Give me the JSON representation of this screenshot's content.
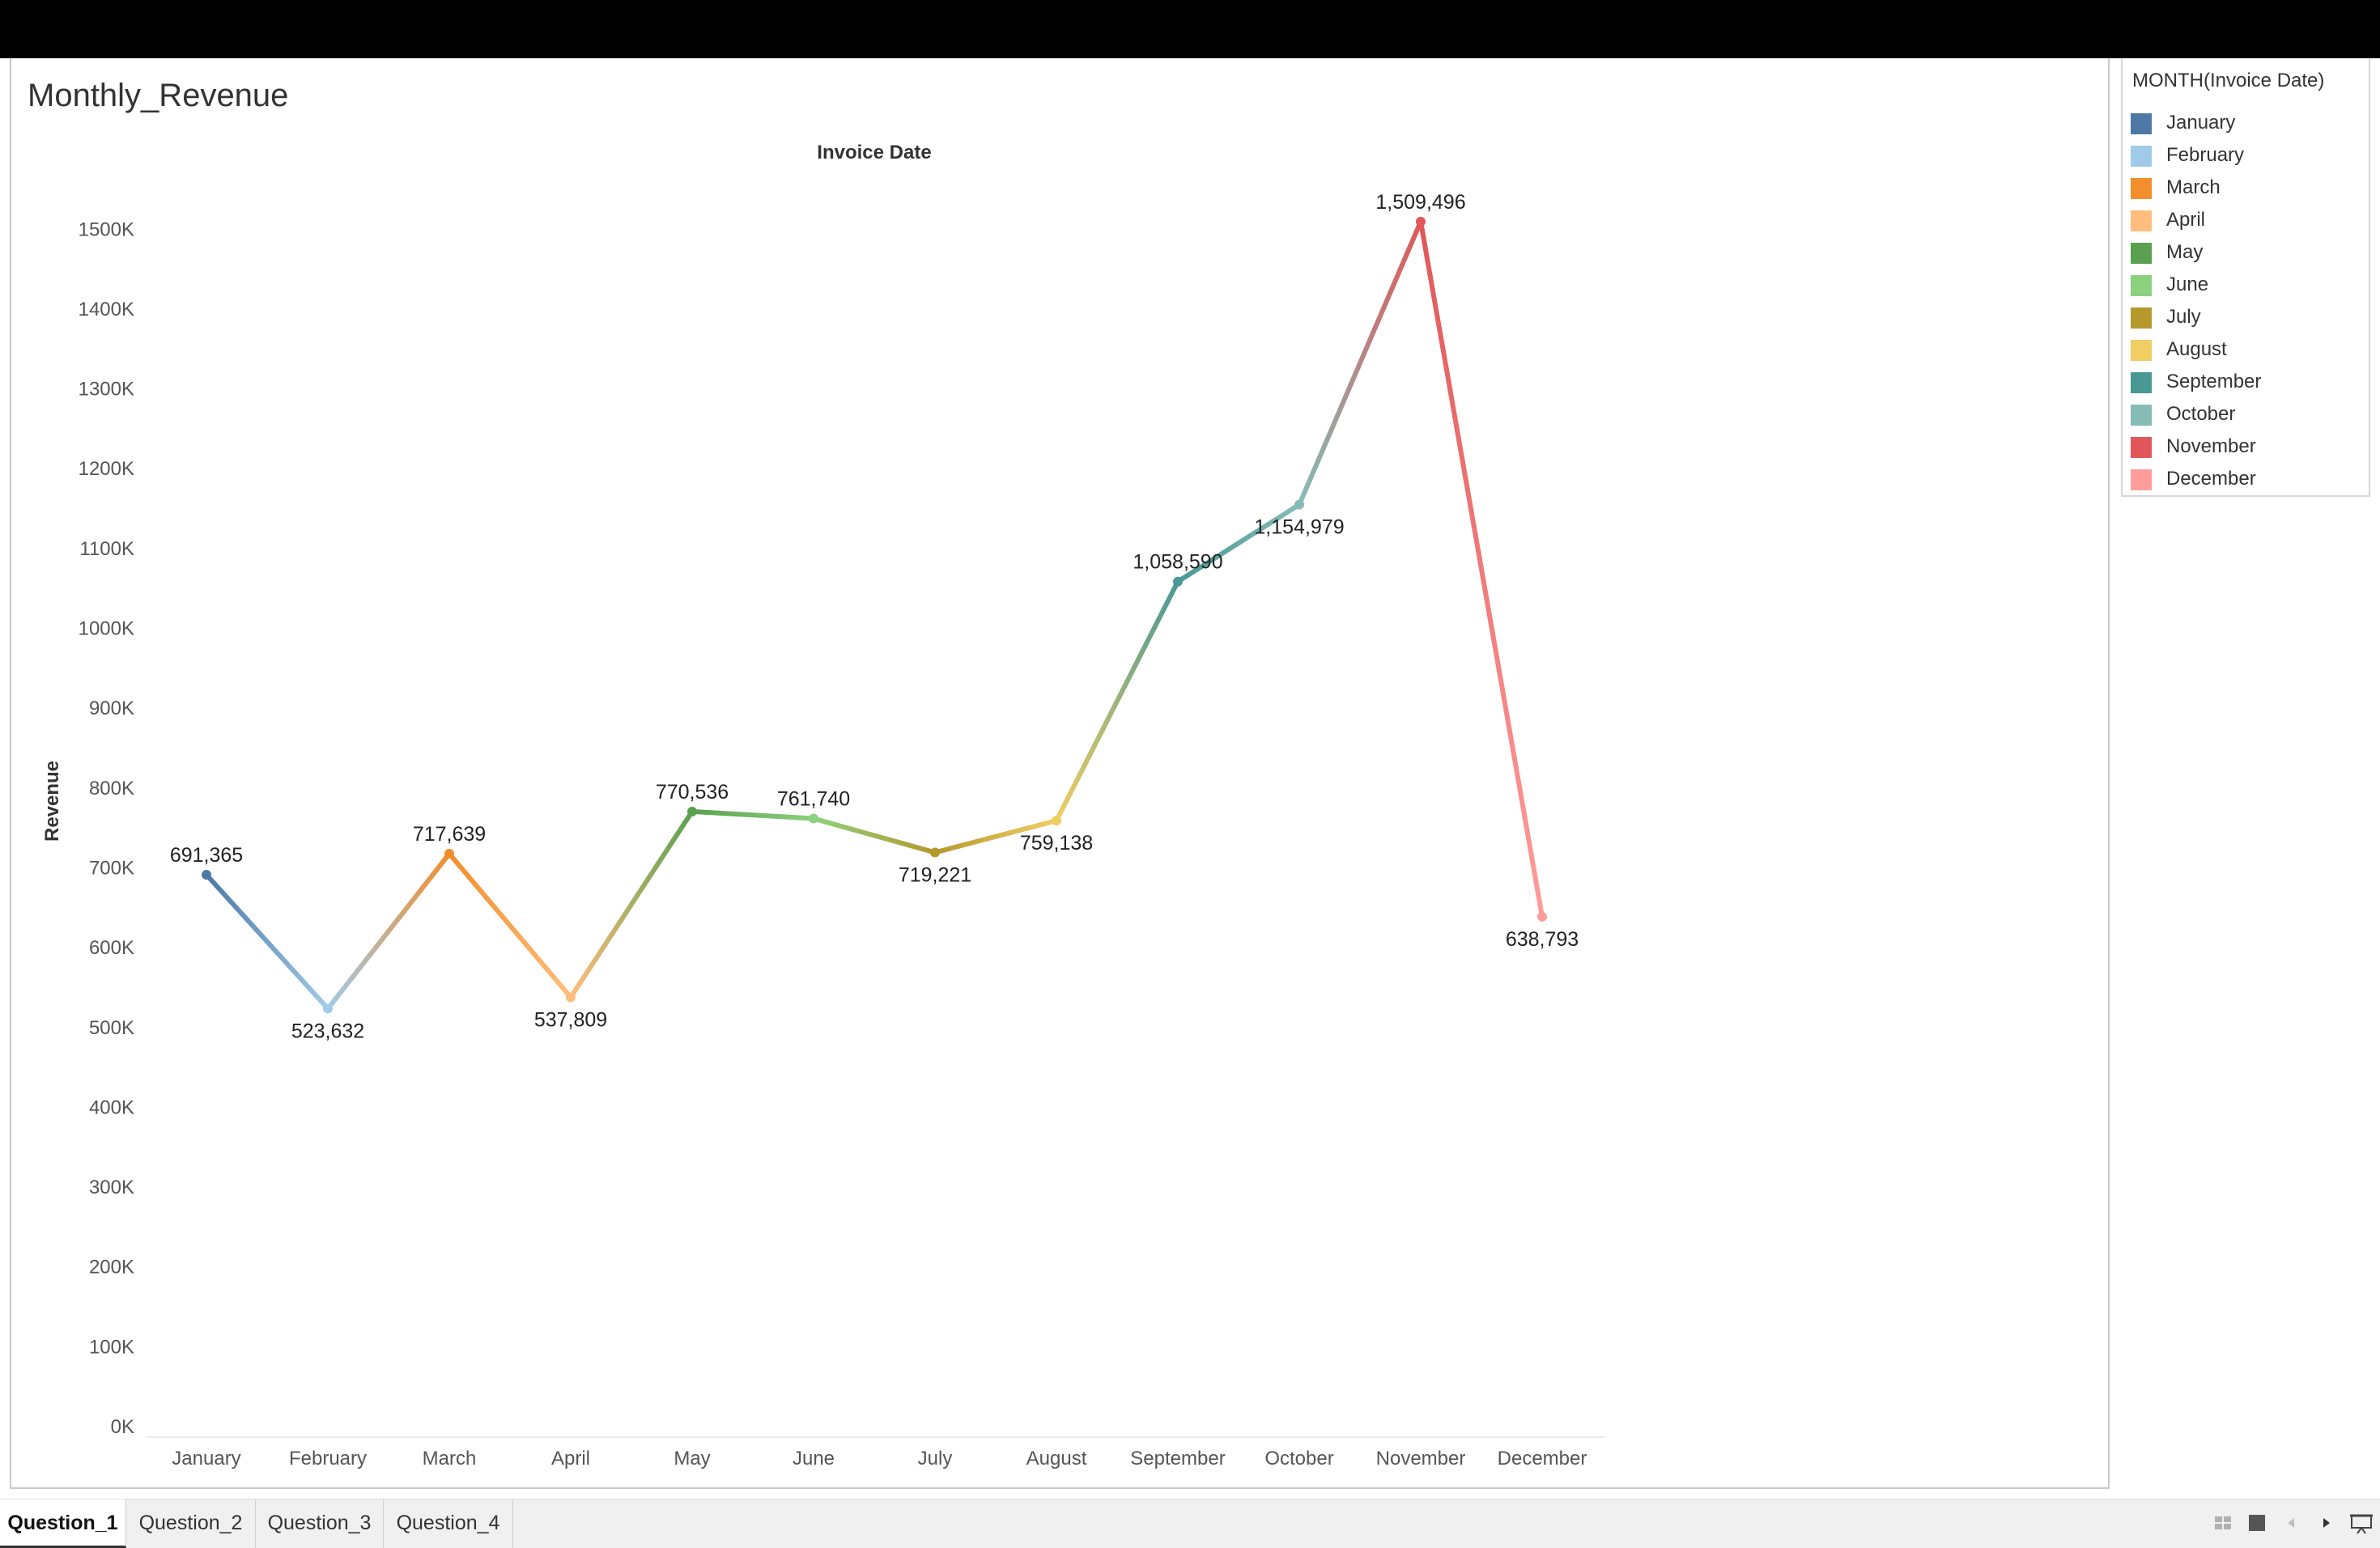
{
  "sheet": {
    "title": "Monthly_Revenue"
  },
  "chart_data": {
    "type": "line",
    "title": "Invoice Date",
    "xlabel": "",
    "ylabel": "Revenue",
    "categories": [
      "January",
      "February",
      "March",
      "April",
      "May",
      "June",
      "July",
      "August",
      "September",
      "October",
      "November",
      "December"
    ],
    "values": [
      691365,
      523632,
      717639,
      537809,
      770536,
      761740,
      719221,
      759138,
      1058590,
      1154979,
      1509496,
      638793
    ],
    "data_labels": [
      "691,365",
      "523,632",
      "717,639",
      "537,809",
      "770,536",
      "761,740",
      "719,221",
      "759,138",
      "1,058,590",
      "1,154,979",
      "1,509,496",
      "638,793"
    ],
    "label_positions": [
      "above",
      "below",
      "above",
      "below",
      "above",
      "above",
      "below",
      "below",
      "above",
      "below",
      "above",
      "below"
    ],
    "y_ticks": [
      0,
      100000,
      200000,
      300000,
      400000,
      500000,
      600000,
      700000,
      800000,
      900000,
      1000000,
      1100000,
      1200000,
      1300000,
      1400000,
      1500000
    ],
    "y_tick_labels": [
      "0K",
      "100K",
      "200K",
      "300K",
      "400K",
      "500K",
      "600K",
      "700K",
      "800K",
      "900K",
      "1000K",
      "1100K",
      "1200K",
      "1300K",
      "1400K",
      "1500K"
    ],
    "ylim": [
      0,
      1560000
    ],
    "grid": false,
    "legend_position": "right",
    "colors": [
      "#4e79a7",
      "#a0cbe8",
      "#f28e2b",
      "#ffbe7d",
      "#59a14f",
      "#8cd17d",
      "#b6992d",
      "#f1ce63",
      "#499894",
      "#86bcb6",
      "#e15759",
      "#ff9d9a"
    ]
  },
  "legend": {
    "title": "MONTH(Invoice Date)",
    "items": [
      {
        "label": "January",
        "color": "#4e79a7"
      },
      {
        "label": "February",
        "color": "#a0cbe8"
      },
      {
        "label": "March",
        "color": "#f28e2b"
      },
      {
        "label": "April",
        "color": "#ffbe7d"
      },
      {
        "label": "May",
        "color": "#59a14f"
      },
      {
        "label": "June",
        "color": "#8cd17d"
      },
      {
        "label": "July",
        "color": "#b6992d"
      },
      {
        "label": "August",
        "color": "#f1ce63"
      },
      {
        "label": "September",
        "color": "#499894"
      },
      {
        "label": "October",
        "color": "#86bcb6"
      },
      {
        "label": "November",
        "color": "#e15759"
      },
      {
        "label": "December",
        "color": "#ff9d9a"
      }
    ]
  },
  "tabs": [
    {
      "label": "Question_1",
      "active": true
    },
    {
      "label": "Question_2",
      "active": false
    },
    {
      "label": "Question_3",
      "active": false
    },
    {
      "label": "Question_4",
      "active": false
    }
  ],
  "controls": {
    "icons": [
      "grid-view-icon",
      "single-view-icon",
      "prev-sheet-icon",
      "next-sheet-icon",
      "presentation-mode-icon"
    ]
  }
}
